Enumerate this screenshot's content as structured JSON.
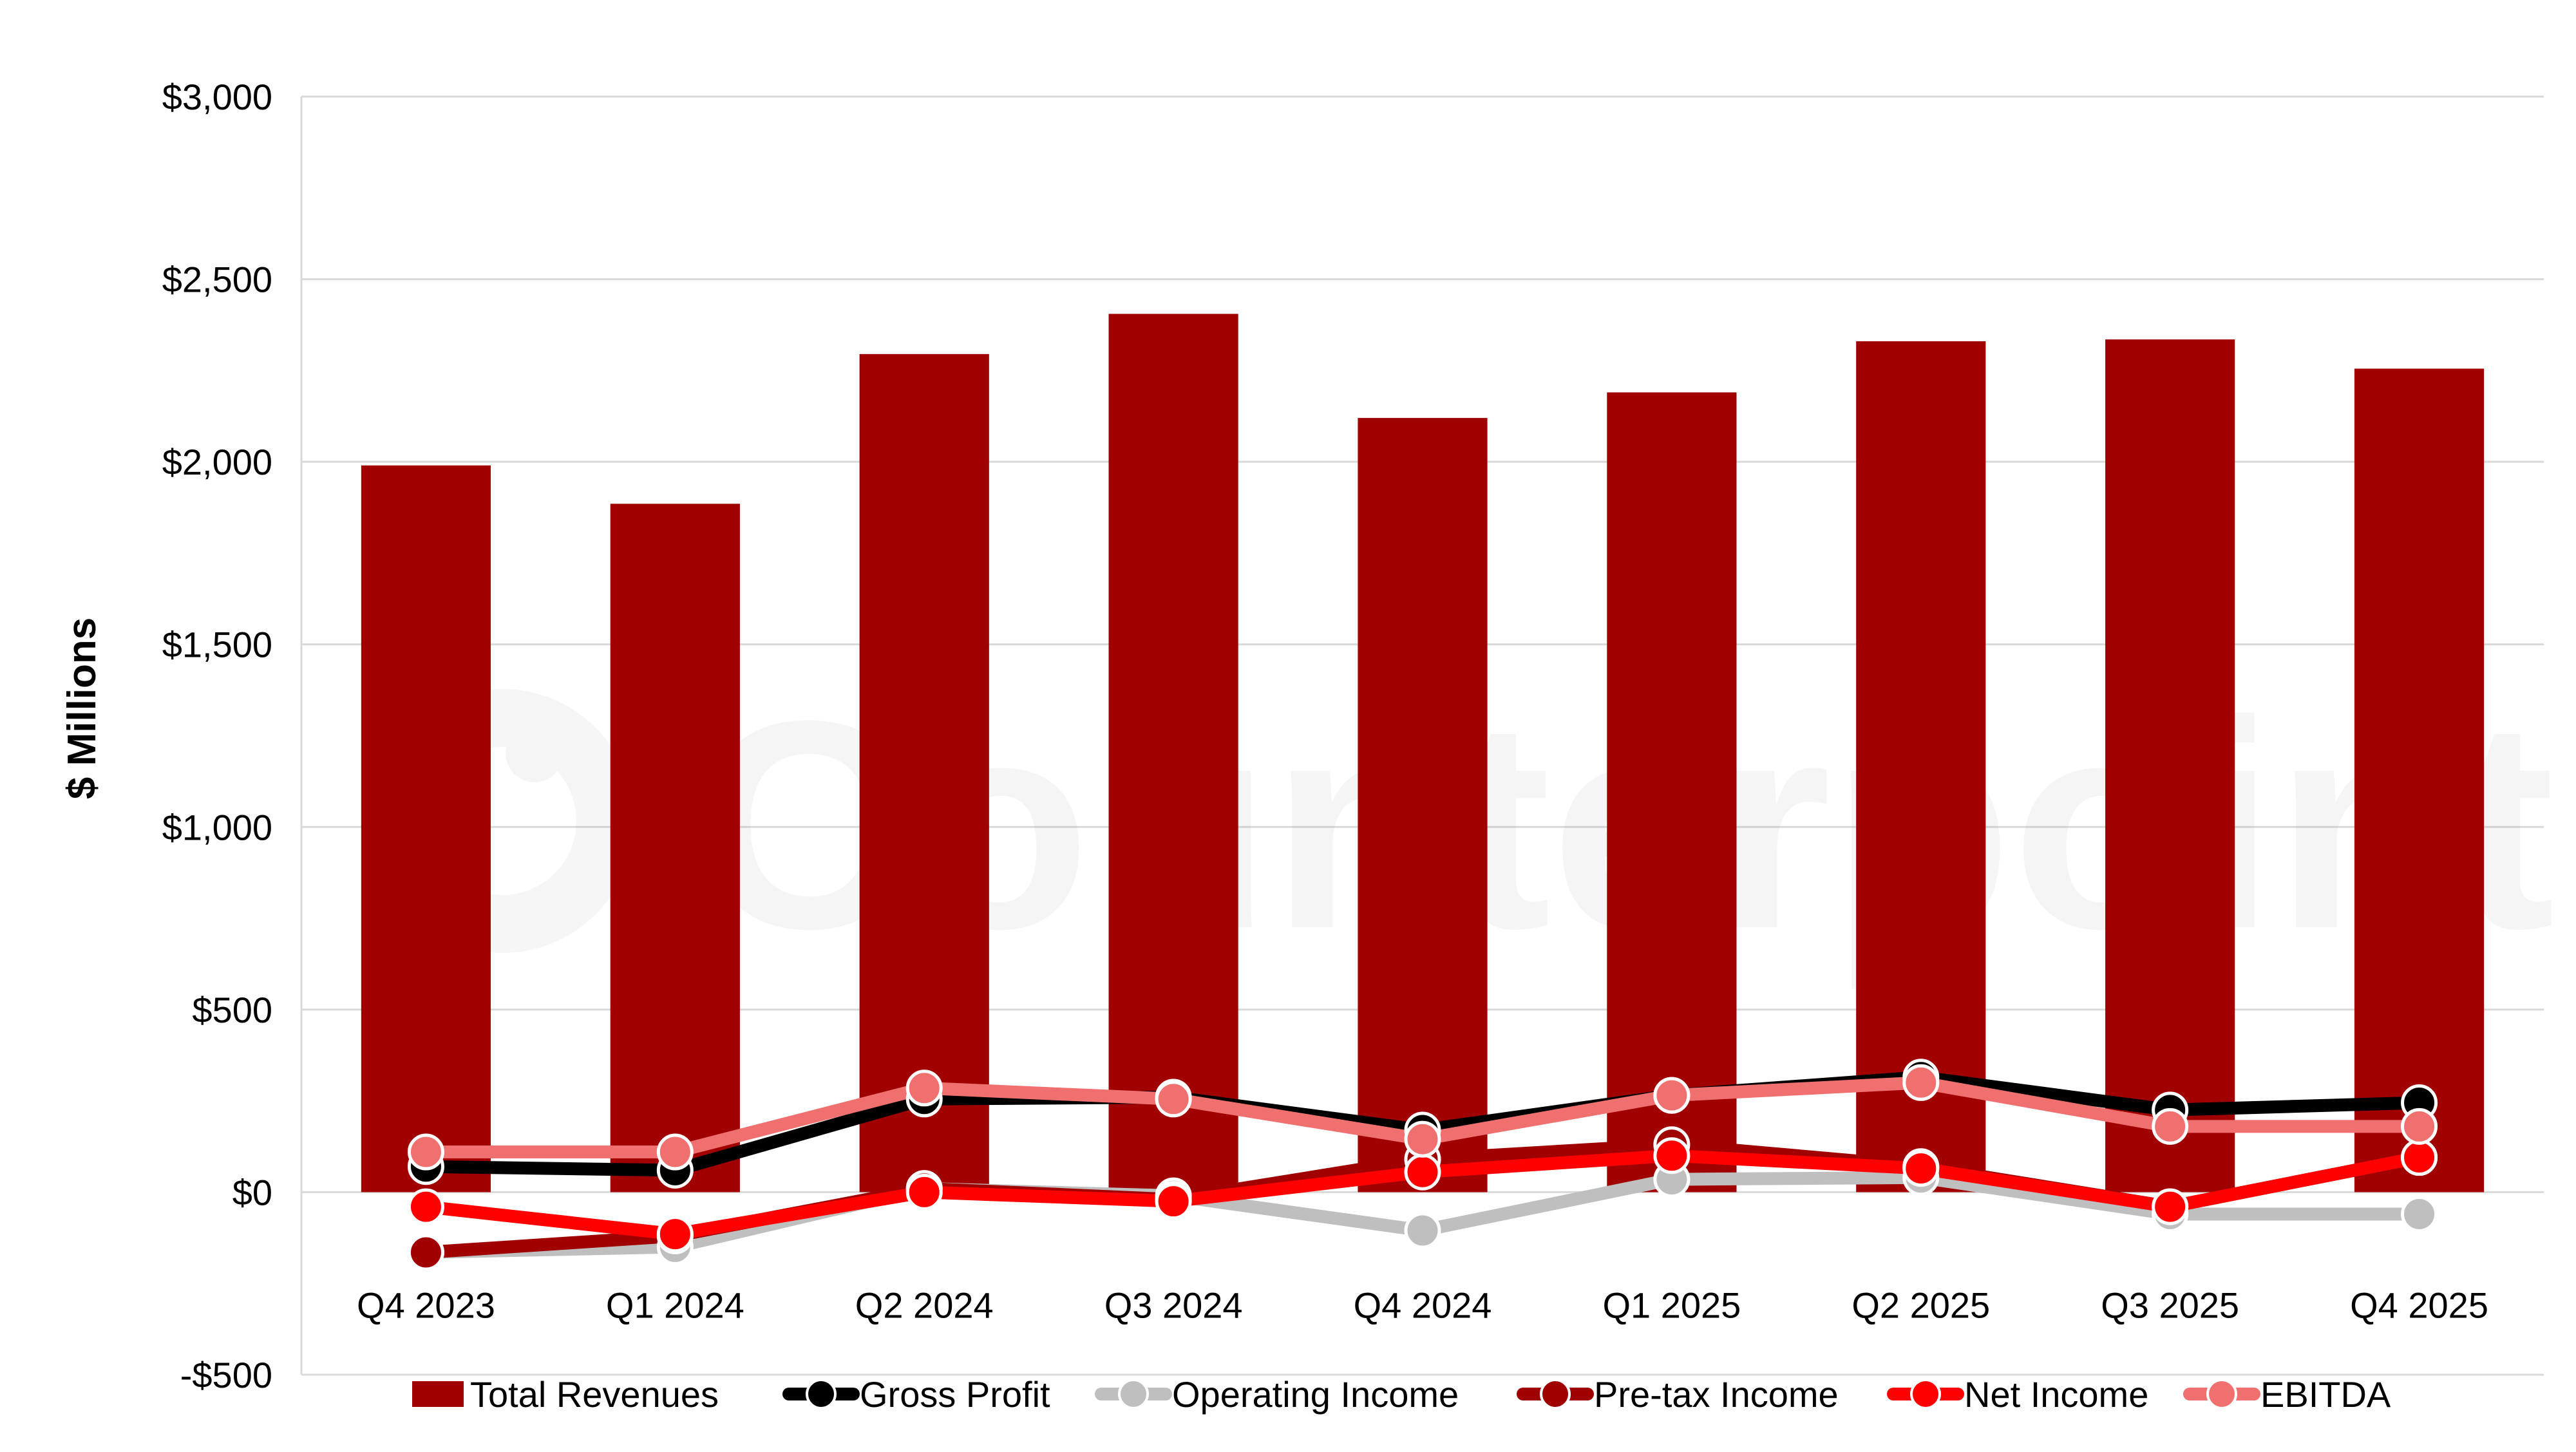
{
  "chart_data": {
    "type": "bar",
    "title": "",
    "xlabel": "",
    "ylabel": "$ Millions",
    "ylim": [
      -500,
      3000
    ],
    "y_ticks": [
      -500,
      0,
      500,
      1000,
      1500,
      2000,
      2500,
      3000
    ],
    "y_tick_labels": [
      "-$500",
      "$0",
      "$500",
      "$1,000",
      "$1,500",
      "$2,000",
      "$2,500",
      "$3,000"
    ],
    "grid": true,
    "legend_position": "bottom",
    "watermark_text": "Counterpoint",
    "categories": [
      "Q4 2023",
      "Q1 2024",
      "Q2 2024",
      "Q3 2024",
      "Q4 2024",
      "Q1 2025",
      "Q2 2025",
      "Q3 2025",
      "Q4 2025"
    ],
    "series": [
      {
        "name": "Total Revenues",
        "type": "bar",
        "color": "#a00000",
        "values": [
          1990,
          1885,
          2295,
          2405,
          2120,
          2190,
          2330,
          2335,
          2255
        ]
      },
      {
        "name": "Gross Profit",
        "type": "line",
        "color": "#000000",
        "values": [
          70,
          60,
          255,
          260,
          170,
          265,
          315,
          225,
          245
        ]
      },
      {
        "name": "Operating Income",
        "type": "line",
        "color": "#bfbfbf",
        "values": [
          -165,
          -150,
          10,
          -10,
          -105,
          35,
          40,
          -60,
          -60
        ]
      },
      {
        "name": "Pre-tax Income",
        "type": "line",
        "color": "#a00000",
        "values": [
          -165,
          -120,
          10,
          -20,
          90,
          130,
          70,
          -40,
          95
        ]
      },
      {
        "name": "Net Income",
        "type": "line",
        "color": "#ff0000",
        "values": [
          -40,
          -115,
          0,
          -25,
          55,
          100,
          65,
          -40,
          95
        ]
      },
      {
        "name": "EBITDA",
        "type": "line",
        "color": "#f07070",
        "values": [
          110,
          110,
          285,
          255,
          145,
          265,
          300,
          180,
          180
        ]
      }
    ]
  }
}
